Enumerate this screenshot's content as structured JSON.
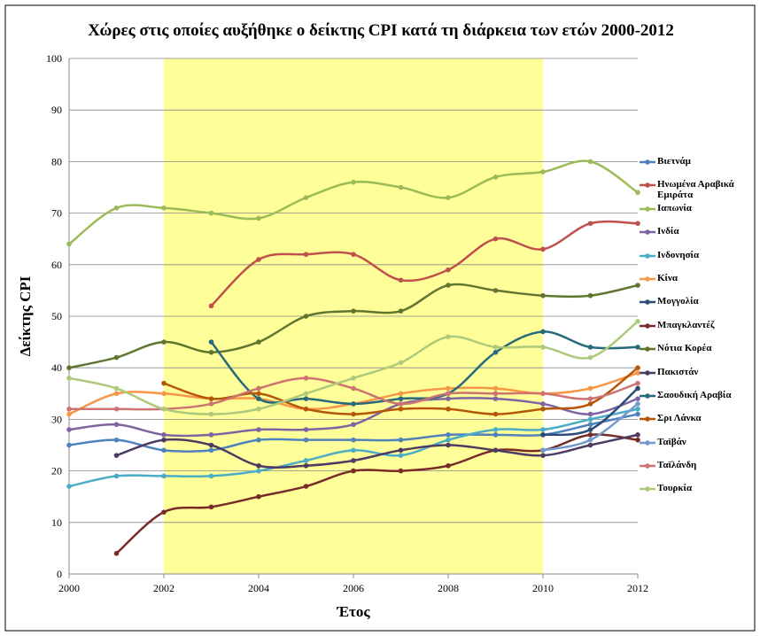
{
  "chart_data": {
    "type": "line",
    "title": "Χώρες στις οποίες αυξήθηκε ο δείκτης CPI κατά τη διάρκεια των ετών 2000-2012",
    "x_label": "Έτος",
    "y_label": "Δείκτης CPI",
    "x": [
      2000,
      2001,
      2002,
      2003,
      2004,
      2005,
      2006,
      2007,
      2008,
      2009,
      2010,
      2011,
      2012
    ],
    "xlim": [
      2000,
      2012
    ],
    "xticks": [
      2000,
      2002,
      2004,
      2006,
      2008,
      2010,
      2012
    ],
    "ylim": [
      0,
      100
    ],
    "yticks": [
      0,
      10,
      20,
      30,
      40,
      50,
      60,
      70,
      80,
      90,
      100
    ],
    "shaded_range": [
      2002,
      2010
    ],
    "shade_color": "#ffff99",
    "legend": "right",
    "smooth": true,
    "series": [
      {
        "name": "Βιετνάμ",
        "color": "#4f81bd",
        "values": [
          25,
          26,
          24,
          24,
          26,
          26,
          26,
          26,
          27,
          27,
          27,
          29,
          31
        ]
      },
      {
        "name": "Ηνωμένα Αραβικά Εμιράτα",
        "color": "#c0504d",
        "values": [
          null,
          null,
          null,
          52,
          61,
          62,
          62,
          57,
          59,
          65,
          63,
          68,
          68
        ]
      },
      {
        "name": "Ιαπωνία",
        "color": "#9bbb59",
        "values": [
          64,
          71,
          71,
          70,
          69,
          73,
          76,
          75,
          73,
          77,
          78,
          80,
          74
        ]
      },
      {
        "name": "Ινδία",
        "color": "#8064a2",
        "values": [
          28,
          29,
          27,
          27,
          28,
          28,
          29,
          33,
          34,
          34,
          33,
          31,
          34
        ]
      },
      {
        "name": "Ινδονησία",
        "color": "#4bacc6",
        "values": [
          17,
          19,
          19,
          19,
          20,
          22,
          24,
          23,
          26,
          28,
          28,
          30,
          32
        ]
      },
      {
        "name": "Κίνα",
        "color": "#f79646",
        "values": [
          31,
          35,
          35,
          34,
          34,
          32,
          33,
          35,
          36,
          36,
          35,
          36,
          39
        ]
      },
      {
        "name": "Μογγολία",
        "color": "#2c4d75",
        "values": [
          null,
          null,
          null,
          null,
          null,
          null,
          null,
          null,
          null,
          null,
          27,
          28,
          36
        ]
      },
      {
        "name": "Μπαγκλαντέζ",
        "color": "#772c2a",
        "values": [
          null,
          4,
          12,
          13,
          15,
          17,
          20,
          20,
          21,
          24,
          24,
          27,
          26
        ]
      },
      {
        "name": "Νότια Κορέα",
        "color": "#5f7530",
        "values": [
          40,
          42,
          45,
          43,
          45,
          50,
          51,
          51,
          56,
          55,
          54,
          54,
          56
        ]
      },
      {
        "name": "Πακιστάν",
        "color": "#4d3b62",
        "values": [
          null,
          23,
          26,
          25,
          21,
          21,
          22,
          24,
          25,
          24,
          23,
          25,
          27
        ]
      },
      {
        "name": "Σαουδική Αραβία",
        "color": "#276a7c",
        "values": [
          null,
          null,
          null,
          45,
          34,
          34,
          33,
          34,
          35,
          43,
          47,
          44,
          44
        ]
      },
      {
        "name": "Σρι Λάνκα",
        "color": "#b65708",
        "values": [
          null,
          null,
          37,
          34,
          35,
          32,
          31,
          32,
          32,
          31,
          32,
          33,
          40
        ]
      },
      {
        "name": "Ταϊβάν",
        "color": "#729aca",
        "values": [
          null,
          null,
          null,
          null,
          null,
          null,
          null,
          null,
          null,
          null,
          24,
          26,
          33
        ]
      },
      {
        "name": "Ταϊλάνδη",
        "color": "#cd7371",
        "values": [
          32,
          32,
          32,
          33,
          36,
          38,
          36,
          33,
          35,
          35,
          35,
          34,
          37
        ]
      },
      {
        "name": "Τουρκία",
        "color": "#afc97a",
        "values": [
          38,
          36,
          32,
          31,
          32,
          35,
          38,
          41,
          46,
          44,
          44,
          42,
          49
        ]
      }
    ]
  }
}
